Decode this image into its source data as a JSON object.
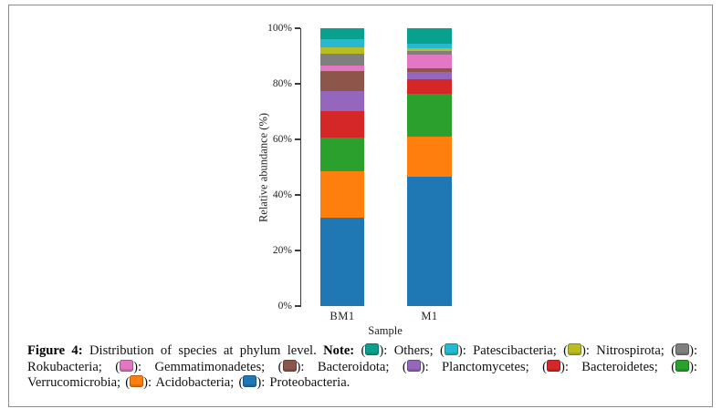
{
  "caption": {
    "figure_label": "Figure 4:",
    "body": "Distribution of species at phylum level.",
    "note_label": "Note:",
    "legend": [
      {
        "label": "Others",
        "color": "#0aa08e"
      },
      {
        "label": "Patescibacteria",
        "color": "#27b9cf"
      },
      {
        "label": "Nitrospirota",
        "color": "#b9bc22"
      },
      {
        "label": "Rokubacteria",
        "color": "#7f7f7f"
      },
      {
        "label": "Gemmatimonadetes",
        "color": "#e377c2"
      },
      {
        "label": "Bacteroidota",
        "color": "#8c564b"
      },
      {
        "label": "Planctomycetes",
        "color": "#9467bd"
      },
      {
        "label": "Bacteroidetes",
        "color": "#d62728"
      },
      {
        "label": "Verrucomicrobia",
        "color": "#2ca02c"
      },
      {
        "label": "Acidobacteria",
        "color": "#ff7f0e"
      },
      {
        "label": "Proteobacteria",
        "color": "#1f77b4"
      }
    ]
  },
  "chart_data": {
    "type": "bar",
    "stacked": true,
    "stack_order": "bottom-to-top",
    "title": "",
    "xlabel": "Sample",
    "ylabel": "Relative abundance (%)",
    "categories": [
      "BM1",
      "M1"
    ],
    "ylim": [
      0,
      100
    ],
    "ytick_values": [
      0,
      20,
      40,
      60,
      80,
      100
    ],
    "ytick_labels": [
      "0%",
      "20%",
      "40%",
      "60%",
      "80%",
      "100%"
    ],
    "grid": false,
    "legend_position": "in-caption",
    "series": [
      {
        "name": "Proteobacteria",
        "color": "#1f77b4",
        "values": [
          31.7,
          46.6
        ]
      },
      {
        "name": "Acidobacteria",
        "color": "#ff7f0e",
        "values": [
          16.9,
          14.4
        ]
      },
      {
        "name": "Verrucomicrobia",
        "color": "#2ca02c",
        "values": [
          11.9,
          15.5
        ]
      },
      {
        "name": "Bacteroidetes",
        "color": "#d62728",
        "values": [
          9.5,
          5.2
        ]
      },
      {
        "name": "Planctomycetes",
        "color": "#9467bd",
        "values": [
          7.4,
          2.4
        ]
      },
      {
        "name": "Bacteroidota",
        "color": "#8c564b",
        "values": [
          7.1,
          1.5
        ]
      },
      {
        "name": "Gemmatimonadetes",
        "color": "#e377c2",
        "values": [
          1.9,
          5.0
        ]
      },
      {
        "name": "Rokubacteria",
        "color": "#7f7f7f",
        "values": [
          4.3,
          1.3
        ]
      },
      {
        "name": "Nitrospirota",
        "color": "#b9bc22",
        "values": [
          2.5,
          1.0
        ]
      },
      {
        "name": "Patescibacteria",
        "color": "#27b9cf",
        "values": [
          2.8,
          1.6
        ]
      },
      {
        "name": "Others",
        "color": "#0aa08e",
        "values": [
          4.0,
          5.5
        ]
      }
    ]
  }
}
